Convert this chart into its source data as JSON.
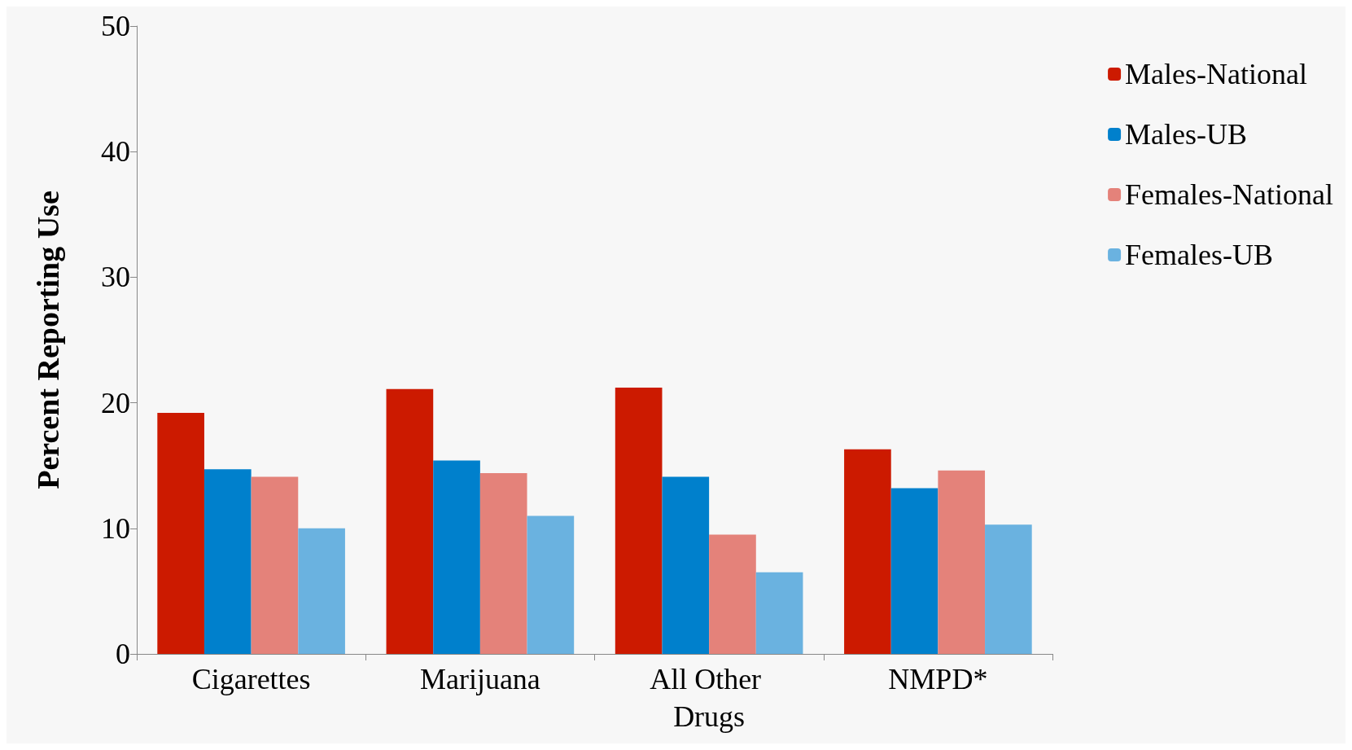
{
  "chart_data": {
    "type": "bar",
    "ylabel": "Percent Reporting Use",
    "categories": [
      "Cigarettes",
      "Marijuana",
      "All Other Drugs",
      "NMPD*"
    ],
    "series": [
      {
        "name": "Males-National",
        "color": "#cc1a00",
        "values": [
          19.2,
          21.1,
          21.2,
          16.3
        ]
      },
      {
        "name": "Males-UB",
        "color": "#0080cc",
        "values": [
          14.7,
          15.4,
          14.1,
          13.2
        ]
      },
      {
        "name": "Females-National",
        "color": "#e4827a",
        "values": [
          14.1,
          14.4,
          9.5,
          14.6
        ]
      },
      {
        "name": "Females-UB",
        "color": "#6ab2e0",
        "values": [
          10.0,
          11.0,
          6.5,
          10.3
        ]
      }
    ],
    "ylim": [
      0,
      50
    ],
    "yticks": [
      0,
      10,
      20,
      30,
      40,
      50
    ],
    "grid": false,
    "legend": "top right"
  }
}
